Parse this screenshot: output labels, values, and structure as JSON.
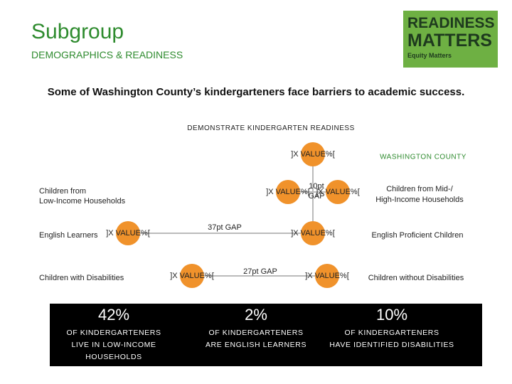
{
  "header": {
    "title": "Subgroup",
    "subtitle": "DEMOGRAPHICS & READINESS"
  },
  "logo": {
    "line1": "READINESS",
    "line2": "MATTERS",
    "tagline": "Equity Matters"
  },
  "intro": "Some of Washington County’s kindergarteners face barriers to academic success.",
  "section_title": "DEMONSTRATE KINDERGARTEN READINESS",
  "county": {
    "label": "WASHINGTON COUNTY",
    "value": "]X VALUE%["
  },
  "rows": [
    {
      "left": [
        "Children from",
        "Low-Income Households"
      ],
      "right": [
        "Children from Mid-/",
        "High-Income Households"
      ],
      "left_value": "]X VALUE%[",
      "right_value": "]X VALUE%[",
      "gap": [
        "10pt",
        "GAP"
      ]
    },
    {
      "left": [
        "English Learners"
      ],
      "right": [
        "English Proficient Children"
      ],
      "left_value": "]X VALUE%[",
      "right_value": "]X VALUE%[",
      "gap": [
        "37pt GAP"
      ]
    },
    {
      "left": [
        "Children with Disabilities"
      ],
      "right": [
        "Children without Disabilities"
      ],
      "left_value": "]X VALUE%[",
      "right_value": "]X VALUE%[",
      "gap": [
        "27pt GAP"
      ]
    }
  ],
  "stats": [
    {
      "value": "42%",
      "lines": [
        "OF KINDERGARTENERS",
        "LIVE IN LOW-INCOME",
        "HOUSEHOLDS"
      ]
    },
    {
      "value": "2%",
      "lines": [
        "OF KINDERGARTENERS",
        "ARE ENGLISH LEARNERS"
      ]
    },
    {
      "value": "10%",
      "lines": [
        "OF KINDERGARTENERS",
        "HAVE IDENTIFIED DISABILITIES"
      ]
    }
  ]
}
